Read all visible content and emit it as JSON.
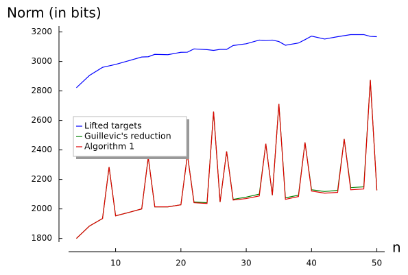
{
  "chart_data": {
    "type": "line",
    "ylabel": "Norm (in bits)",
    "xlabel": "n",
    "x": [
      4,
      6,
      8,
      9,
      10,
      12,
      14,
      15,
      16,
      18,
      20,
      21,
      22,
      24,
      25,
      26,
      27,
      28,
      30,
      32,
      33,
      34,
      35,
      36,
      38,
      39,
      40,
      42,
      44,
      45,
      46,
      48,
      49,
      50
    ],
    "series": [
      {
        "name": "Lifted targets",
        "color": "#0000ff",
        "values": [
          2822,
          2905,
          2960,
          2970,
          2980,
          3005,
          3030,
          3032,
          3048,
          3046,
          3062,
          3063,
          3085,
          3080,
          3075,
          3082,
          3082,
          3108,
          3120,
          3145,
          3142,
          3145,
          3135,
          3110,
          3125,
          3148,
          3172,
          3152,
          3168,
          3175,
          3182,
          3182,
          3170,
          3168
        ]
      },
      {
        "name": "Guillevic's reduction",
        "color": "#008000",
        "values": [
          1800,
          1884,
          1935,
          2284,
          1953,
          1976,
          2000,
          2349,
          2014,
          2014,
          2028,
          2367,
          2047,
          2042,
          2660,
          2047,
          2390,
          2065,
          2080,
          2100,
          2442,
          2093,
          2712,
          2075,
          2093,
          2451,
          2130,
          2118,
          2126,
          2474,
          2144,
          2150,
          2874,
          2126
        ]
      },
      {
        "name": "Algorithm 1",
        "color": "#e00000",
        "values": [
          1800,
          1884,
          1935,
          2284,
          1953,
          1976,
          2000,
          2349,
          2014,
          2014,
          2028,
          2367,
          2042,
          2037,
          2660,
          2047,
          2390,
          2060,
          2070,
          2088,
          2442,
          2093,
          2712,
          2065,
          2084,
          2451,
          2121,
          2107,
          2112,
          2474,
          2130,
          2135,
          2874,
          2126
        ]
      }
    ],
    "xlim": [
      2.8,
      51.2
    ],
    "ylim": [
      1710,
      3240
    ],
    "xticks": [
      10,
      20,
      30,
      40,
      50
    ],
    "yticks": [
      1800,
      2000,
      2200,
      2400,
      2600,
      2800,
      3000,
      3200
    ],
    "legend": "center-left"
  }
}
